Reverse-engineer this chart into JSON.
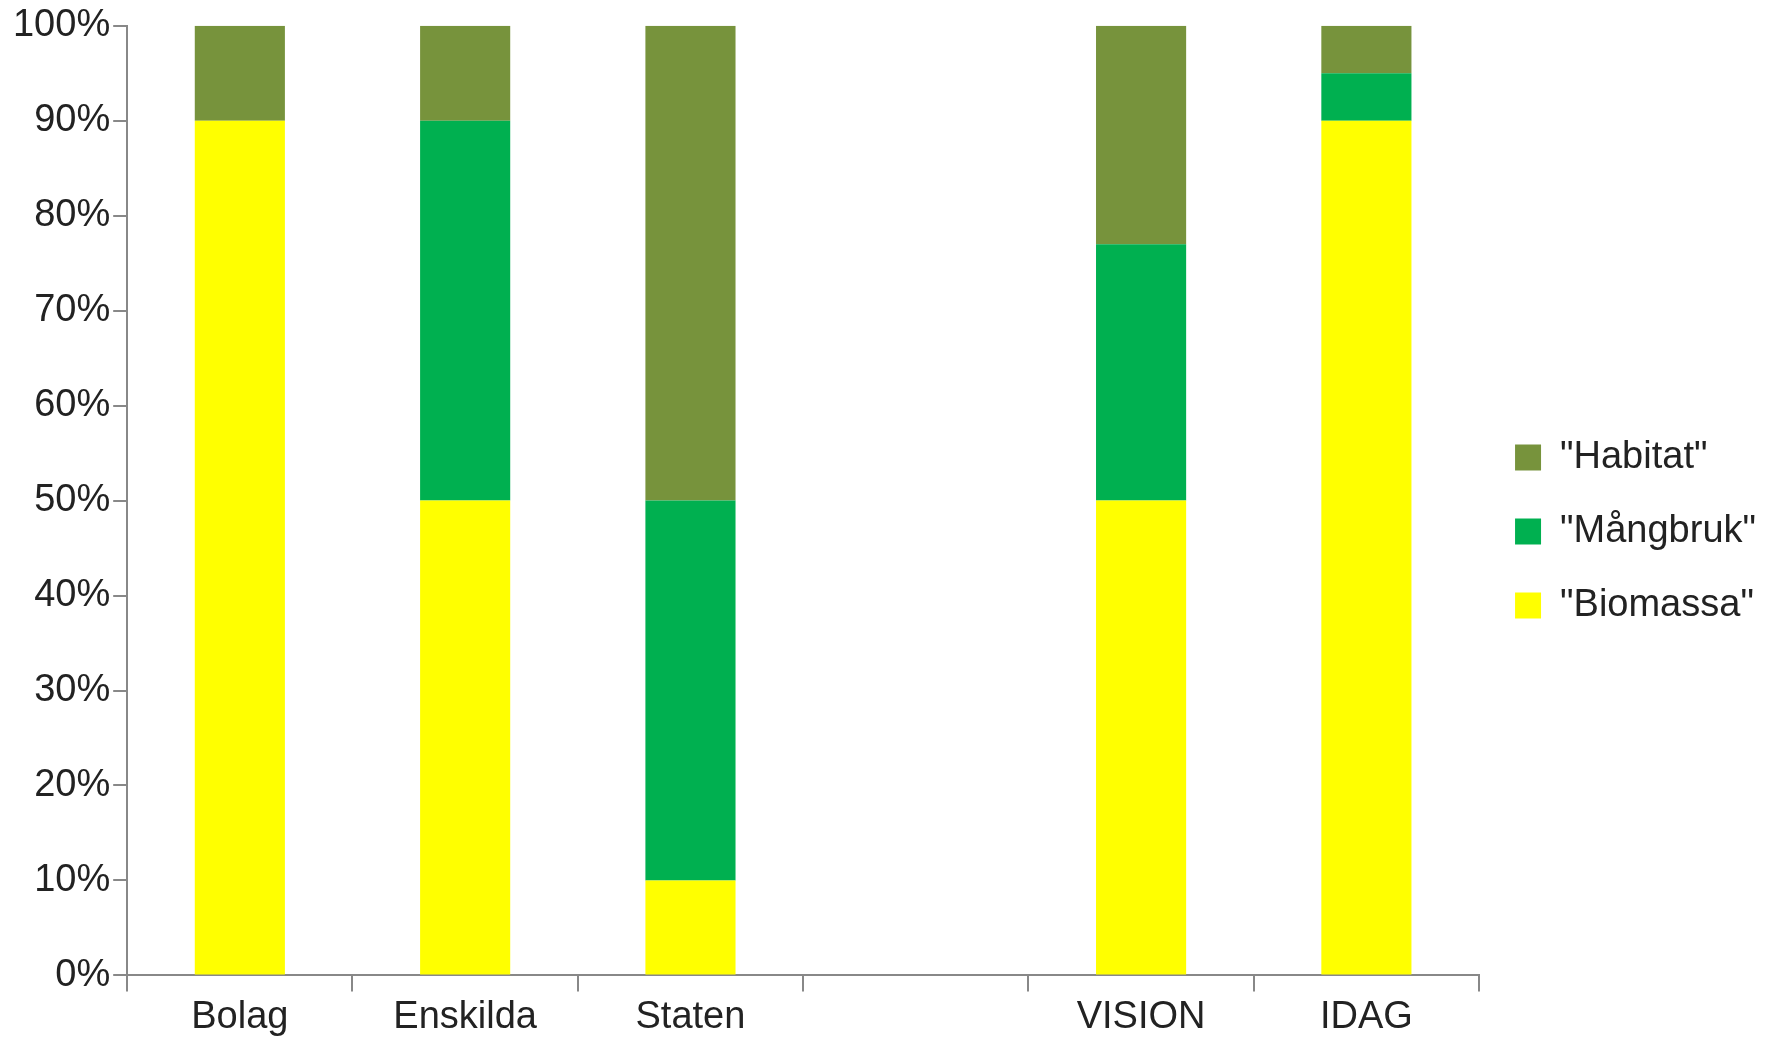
{
  "chart_data": {
    "type": "bar",
    "stacked": true,
    "categories": [
      "Bolag",
      "Enskilda",
      "Staten",
      null,
      "VISION",
      "IDAG"
    ],
    "series": [
      {
        "name": "\"Biomassa\"",
        "color": "#ffff00",
        "values": [
          90,
          50,
          10,
          null,
          50,
          90
        ]
      },
      {
        "name": "\"Mångbruk\"",
        "color": "#00b050",
        "values": [
          0,
          40,
          40,
          null,
          27,
          5
        ]
      },
      {
        "name": "\"Habitat\"",
        "color": "#77933c",
        "values": [
          10,
          10,
          50,
          null,
          23,
          5
        ]
      }
    ],
    "ylim": [
      0,
      100
    ],
    "yticks": [
      {
        "value": 0,
        "label": "0%"
      },
      {
        "value": 10,
        "label": "10%"
      },
      {
        "value": 20,
        "label": "20%"
      },
      {
        "value": 30,
        "label": "30%"
      },
      {
        "value": 40,
        "label": "40%"
      },
      {
        "value": 50,
        "label": "50%"
      },
      {
        "value": 60,
        "label": "60%"
      },
      {
        "value": 70,
        "label": "70%"
      },
      {
        "value": 80,
        "label": "80%"
      },
      {
        "value": 90,
        "label": "90%"
      },
      {
        "value": 100,
        "label": "100%"
      }
    ],
    "grid": false,
    "legend": "right"
  }
}
